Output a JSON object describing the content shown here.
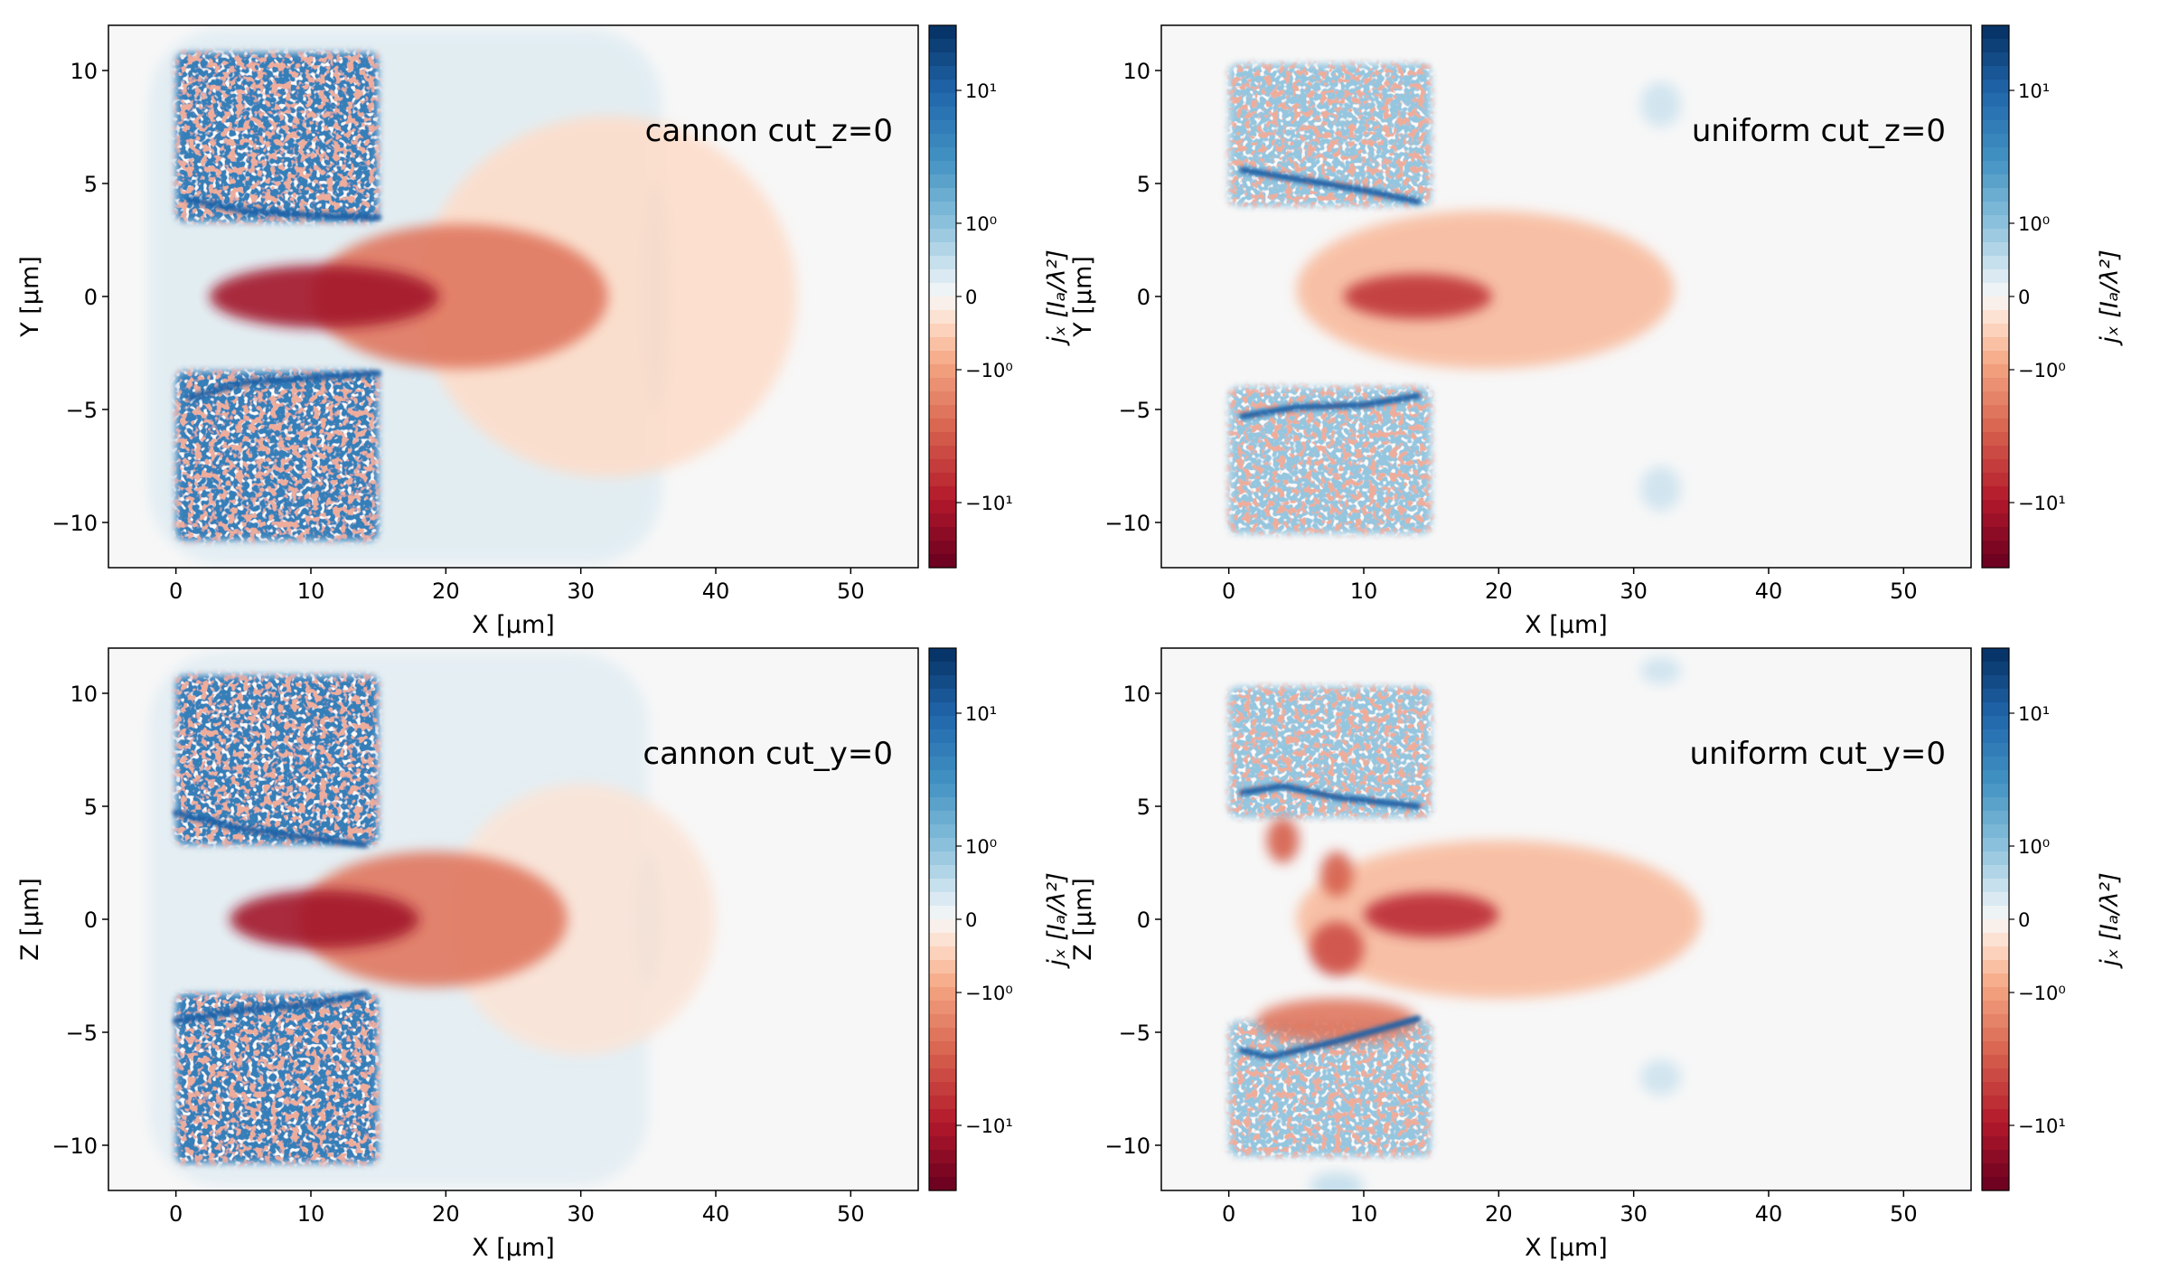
{
  "colors": {
    "colormap": "RdBu",
    "background": "#f7f7f7",
    "positive": "#2166ac",
    "negative": "#b2182b"
  },
  "chart_data": [
    {
      "type": "heatmap",
      "title": "cannon cut_z=0",
      "xlabel": "X  [μm]",
      "ylabel": "Y  [μm]",
      "colorbar_label": "jₓ  [Iₐ/λ²]",
      "xlim": [
        -5,
        55
      ],
      "ylim": [
        -12,
        12
      ],
      "xticks": [
        0,
        10,
        20,
        30,
        40,
        50
      ],
      "yticks": [
        -10,
        -5,
        0,
        5,
        10
      ],
      "xtick_labels": [
        "0",
        "10",
        "20",
        "30",
        "40",
        "50"
      ],
      "ytick_labels": [
        "−10",
        "−5",
        "0",
        "5",
        "10"
      ],
      "colorbar_scale": "symlog",
      "colorbar_range": [
        -31,
        31
      ],
      "colorbar_ticks": [
        10,
        1,
        0,
        -1,
        -10
      ],
      "colorbar_tick_labels": [
        "10¹",
        "10⁰",
        "0",
        "−10⁰",
        "−10¹"
      ],
      "features": [
        {
          "shape": "rect",
          "x": [
            -2,
            36
          ],
          "y": [
            -11.8,
            11.8
          ],
          "value": 0.25
        },
        {
          "shape": "ellipse",
          "cx": 35.5,
          "cy": 0,
          "rx": 1,
          "ry": 5,
          "value": 0.8
        },
        {
          "shape": "ellipse",
          "cx": 32,
          "cy": 0,
          "rx": 14,
          "ry": 8,
          "value": -0.35
        },
        {
          "shape": "slab",
          "x": [
            0,
            15
          ],
          "y": [
            3.3,
            10.8
          ],
          "value": 5
        },
        {
          "shape": "slab",
          "x": [
            0,
            15
          ],
          "y": [
            -10.8,
            -3.3
          ],
          "value": 5
        },
        {
          "shape": "ellipse",
          "cx": 21,
          "cy": 0,
          "rx": 11,
          "ry": 3.2,
          "value": -2
        },
        {
          "shape": "ellipse",
          "cx": 11,
          "cy": 0,
          "rx": 8.5,
          "ry": 1.4,
          "value": -12
        },
        {
          "shape": "line",
          "points": [
            [
              1,
              4.3
            ],
            [
              5,
              3.8
            ],
            [
              10,
              3.6
            ],
            [
              15,
              3.5
            ]
          ],
          "value": 20
        },
        {
          "shape": "line",
          "points": [
            [
              1,
              -4.5
            ],
            [
              5,
              -3.8
            ],
            [
              10,
              -3.6
            ],
            [
              15,
              -3.4
            ]
          ],
          "value": 20
        }
      ]
    },
    {
      "type": "heatmap",
      "title": "uniform cut_z=0",
      "xlabel": "X  [μm]",
      "ylabel": "Y  [μm]",
      "colorbar_label": "jₓ  [Iₐ/λ²]",
      "xlim": [
        -5,
        55
      ],
      "ylim": [
        -12,
        12
      ],
      "xticks": [
        0,
        10,
        20,
        30,
        40,
        50
      ],
      "yticks": [
        -10,
        -5,
        0,
        5,
        10
      ],
      "xtick_labels": [
        "0",
        "10",
        "20",
        "30",
        "40",
        "50"
      ],
      "ytick_labels": [
        "−10",
        "−5",
        "0",
        "5",
        "10"
      ],
      "colorbar_scale": "symlog",
      "colorbar_range": [
        -31,
        31
      ],
      "colorbar_ticks": [
        10,
        1,
        0,
        -1,
        -10
      ],
      "colorbar_tick_labels": [
        "10¹",
        "10⁰",
        "0",
        "−10⁰",
        "−10¹"
      ],
      "features": [
        {
          "shape": "slab",
          "x": [
            0,
            15
          ],
          "y": [
            4,
            10.3
          ],
          "value": 0.9
        },
        {
          "shape": "slab",
          "x": [
            0,
            15
          ],
          "y": [
            -10.5,
            -4
          ],
          "value": 0.9
        },
        {
          "shape": "ellipse",
          "cx": 32,
          "cy": 8.5,
          "rx": 1.5,
          "ry": 1,
          "value": 0.4
        },
        {
          "shape": "ellipse",
          "cx": 32,
          "cy": -8.5,
          "rx": 1.5,
          "ry": 1,
          "value": 0.4
        },
        {
          "shape": "ellipse",
          "cx": 19,
          "cy": 0.3,
          "rx": 14,
          "ry": 3.5,
          "value": -0.7
        },
        {
          "shape": "ellipse",
          "cx": 14,
          "cy": 0,
          "rx": 5.5,
          "ry": 1,
          "value": -6
        },
        {
          "shape": "line",
          "points": [
            [
              1,
              5.6
            ],
            [
              5,
              5.2
            ],
            [
              10,
              4.7
            ],
            [
              14,
              4.2
            ]
          ],
          "value": 20
        },
        {
          "shape": "line",
          "points": [
            [
              1,
              -5.3
            ],
            [
              5,
              -4.9
            ],
            [
              10,
              -4.8
            ],
            [
              14,
              -4.4
            ]
          ],
          "value": 20
        }
      ]
    },
    {
      "type": "heatmap",
      "title": "cannon cut_y=0",
      "xlabel": "X  [μm]",
      "ylabel": "Z  [μm]",
      "colorbar_label": "jₓ  [Iₐ/λ²]",
      "xlim": [
        -5,
        55
      ],
      "ylim": [
        -12,
        12
      ],
      "xticks": [
        0,
        10,
        20,
        30,
        40,
        50
      ],
      "yticks": [
        -10,
        -5,
        0,
        5,
        10
      ],
      "xtick_labels": [
        "0",
        "10",
        "20",
        "30",
        "40",
        "50"
      ],
      "ytick_labels": [
        "−10",
        "−5",
        "0",
        "5",
        "10"
      ],
      "colorbar_scale": "symlog",
      "colorbar_range": [
        -31,
        31
      ],
      "colorbar_ticks": [
        10,
        1,
        0,
        -1,
        -10
      ],
      "colorbar_tick_labels": [
        "10¹",
        "10⁰",
        "0",
        "−10⁰",
        "−10¹"
      ],
      "features": [
        {
          "shape": "rect",
          "x": [
            -2,
            35
          ],
          "y": [
            -11.8,
            11.8
          ],
          "value": 0.22
        },
        {
          "shape": "ellipse",
          "cx": 35,
          "cy": 0,
          "rx": 1,
          "ry": 3,
          "value": 0.8
        },
        {
          "shape": "ellipse",
          "cx": 30,
          "cy": 0,
          "rx": 10,
          "ry": 6,
          "value": -0.25
        },
        {
          "shape": "slab",
          "x": [
            0,
            15
          ],
          "y": [
            3.3,
            10.8
          ],
          "value": 5
        },
        {
          "shape": "slab",
          "x": [
            0,
            15
          ],
          "y": [
            -10.8,
            -3.3
          ],
          "value": 5
        },
        {
          "shape": "ellipse",
          "cx": 19,
          "cy": 0,
          "rx": 10,
          "ry": 3,
          "value": -2
        },
        {
          "shape": "ellipse",
          "cx": 11,
          "cy": 0,
          "rx": 7,
          "ry": 1.3,
          "value": -12
        },
        {
          "shape": "line",
          "points": [
            [
              0,
              4.7
            ],
            [
              5,
              4
            ],
            [
              10,
              3.6
            ],
            [
              14,
              3.3
            ]
          ],
          "value": 20
        },
        {
          "shape": "line",
          "points": [
            [
              0,
              -4.5
            ],
            [
              5,
              -4
            ],
            [
              10,
              -3.8
            ],
            [
              14,
              -3.3
            ]
          ],
          "value": 20
        }
      ]
    },
    {
      "type": "heatmap",
      "title": "uniform cut_y=0",
      "xlabel": "X  [μm]",
      "ylabel": "Z  [μm]",
      "colorbar_label": "jₓ  [Iₐ/λ²]",
      "xlim": [
        -5,
        55
      ],
      "ylim": [
        -12,
        12
      ],
      "xticks": [
        0,
        10,
        20,
        30,
        40,
        50
      ],
      "yticks": [
        -10,
        -5,
        0,
        5,
        10
      ],
      "xtick_labels": [
        "0",
        "10",
        "20",
        "30",
        "40",
        "50"
      ],
      "ytick_labels": [
        "−10",
        "−5",
        "0",
        "5",
        "10"
      ],
      "colorbar_scale": "symlog",
      "colorbar_range": [
        -31,
        31
      ],
      "colorbar_ticks": [
        10,
        1,
        0,
        -1,
        -10
      ],
      "colorbar_tick_labels": [
        "10¹",
        "10⁰",
        "0",
        "−10⁰",
        "−10¹"
      ],
      "features": [
        {
          "shape": "slab",
          "x": [
            0,
            15
          ],
          "y": [
            4.5,
            10.3
          ],
          "value": 0.9
        },
        {
          "shape": "slab",
          "x": [
            0,
            15
          ],
          "y": [
            -10.5,
            -4.5
          ],
          "value": 0.9
        },
        {
          "shape": "ellipse",
          "cx": 32,
          "cy": 11,
          "rx": 1.5,
          "ry": 0.6,
          "value": 0.4
        },
        {
          "shape": "ellipse",
          "cx": 32,
          "cy": -7,
          "rx": 1.5,
          "ry": 0.8,
          "value": 0.4
        },
        {
          "shape": "ellipse",
          "cx": 8,
          "cy": -11.8,
          "rx": 2,
          "ry": 0.6,
          "value": 0.5
        },
        {
          "shape": "ellipse",
          "cx": 20,
          "cy": 0,
          "rx": 15,
          "ry": 3.5,
          "value": -0.7
        },
        {
          "shape": "ellipse",
          "cx": 8,
          "cy": -4.5,
          "rx": 6,
          "ry": 1,
          "value": -2
        },
        {
          "shape": "ellipse",
          "cx": 4,
          "cy": 3.5,
          "rx": 1.2,
          "ry": 1,
          "value": -3
        },
        {
          "shape": "ellipse",
          "cx": 8,
          "cy": 2,
          "rx": 1.2,
          "ry": 1,
          "value": -3
        },
        {
          "shape": "ellipse",
          "cx": 8,
          "cy": -1.3,
          "rx": 2,
          "ry": 1.2,
          "value": -4
        },
        {
          "shape": "ellipse",
          "cx": 15,
          "cy": 0.2,
          "rx": 5,
          "ry": 1,
          "value": -7
        },
        {
          "shape": "line",
          "points": [
            [
              1,
              5.6
            ],
            [
              4,
              5.9
            ],
            [
              8,
              5.4
            ],
            [
              14,
              5
            ]
          ],
          "value": 20
        },
        {
          "shape": "line",
          "points": [
            [
              1,
              -5.8
            ],
            [
              3,
              -6.1
            ],
            [
              8,
              -5.4
            ],
            [
              14,
              -4.4
            ]
          ],
          "value": 20
        }
      ]
    }
  ]
}
